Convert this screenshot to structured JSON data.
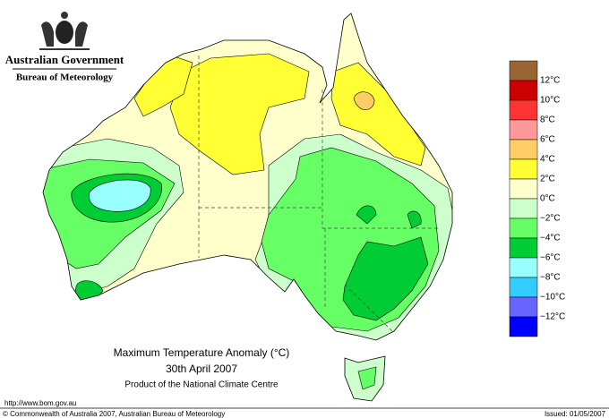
{
  "header": {
    "government": "Australian Government",
    "bureau": "Bureau of Meteorology"
  },
  "map": {
    "title": "Maximum Temperature Anomaly (°C)",
    "date": "30th April 2007",
    "product": "Product of the National Climate Centre"
  },
  "legend": {
    "colors": [
      "#996633",
      "#cc0000",
      "#ff3333",
      "#ff9999",
      "#ffcc66",
      "#ffff33",
      "#ffffcc",
      "#ccffcc",
      "#66ff66",
      "#00cc33",
      "#99ffff",
      "#33ccff",
      "#6666ff",
      "#0000ff"
    ],
    "labels": [
      "12°C",
      "10°C",
      "8°C",
      "6°C",
      "4°C",
      "2°C",
      "0°C",
      "−2°C",
      "−4°C",
      "−6°C",
      "−8°C",
      "−10°C",
      "−12°C"
    ]
  },
  "footer": {
    "url": "http://www.bom.gov.au",
    "copyright": "© Commonwealth of Australia 2007, Australian Bureau of Meteorology",
    "issued": "Issued: 01/05/2007"
  }
}
